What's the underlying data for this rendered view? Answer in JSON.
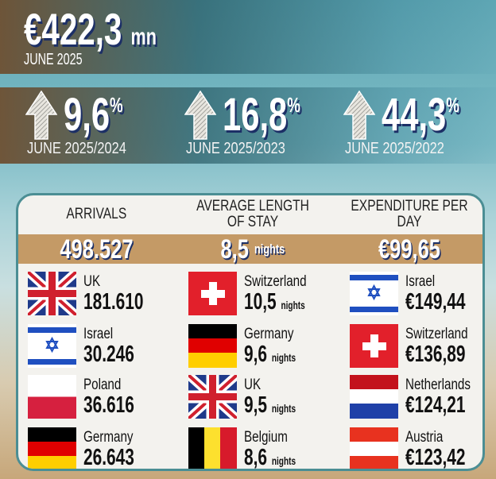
{
  "headline": {
    "value": "€422,3",
    "unit": "mn",
    "period": "JUNE 2025"
  },
  "changes": [
    {
      "value": "9,6",
      "unit": "%",
      "label": "JUNE 2025/2024",
      "icon": "arrow-up-icon"
    },
    {
      "value": "16,8",
      "unit": "%",
      "label": "JUNE 2025/2023",
      "icon": "arrow-up-icon"
    },
    {
      "value": "44,3",
      "unit": "%",
      "label": "JUNE 2025/2022",
      "icon": "arrow-up-icon"
    }
  ],
  "colors": {
    "band": "#c49a66",
    "border": "#4b8e94",
    "shadow": "#1c2f66"
  },
  "columns": [
    {
      "title": "ARRIVALS",
      "total": "498.527",
      "total_unit": "",
      "items": [
        {
          "country": "UK",
          "value": "181.610",
          "unit": "",
          "flag": "uk"
        },
        {
          "country": "Israel",
          "value": "30.246",
          "unit": "",
          "flag": "israel"
        },
        {
          "country": "Poland",
          "value": "36.616",
          "unit": "",
          "flag": "poland"
        },
        {
          "country": "Germany",
          "value": "26.643",
          "unit": "",
          "flag": "germany"
        }
      ]
    },
    {
      "title": "AVERAGE LENGTH OF STAY",
      "total": "8,5",
      "total_unit": "nights",
      "items": [
        {
          "country": "Switzerland",
          "value": "10,5",
          "unit": "nights",
          "flag": "switzerland"
        },
        {
          "country": "Germany",
          "value": "9,6",
          "unit": "nights",
          "flag": "germany"
        },
        {
          "country": "UK",
          "value": "9,5",
          "unit": "nights",
          "flag": "uk"
        },
        {
          "country": "Belgium",
          "value": "8,6",
          "unit": "nights",
          "flag": "belgium"
        }
      ]
    },
    {
      "title": "EXPENDITURE PER DAY",
      "total": "€99,65",
      "total_unit": "",
      "items": [
        {
          "country": "Israel",
          "value": "€149,44",
          "unit": "",
          "flag": "israel"
        },
        {
          "country": "Switzerland",
          "value": "€136,89",
          "unit": "",
          "flag": "switzerland"
        },
        {
          "country": "Netherlands",
          "value": "€124,21",
          "unit": "",
          "flag": "netherlands"
        },
        {
          "country": "Austria",
          "value": "€123,42",
          "unit": "",
          "flag": "austria"
        }
      ]
    }
  ]
}
